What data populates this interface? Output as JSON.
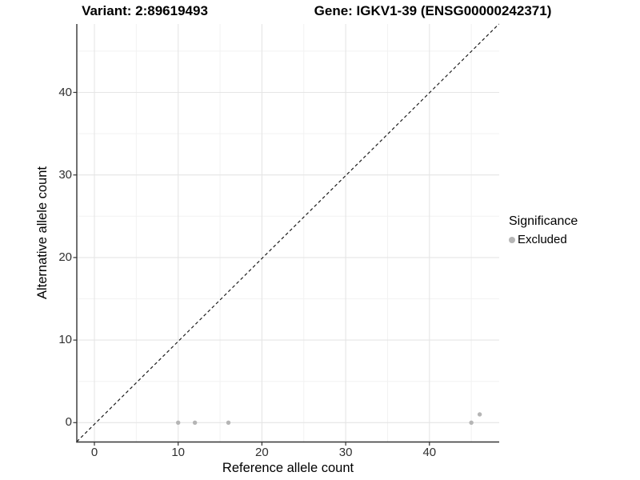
{
  "header": {
    "variant_title": "Variant: 2:89619493",
    "gene_title": "Gene: IGKV1-39 (ENSG00000242371)"
  },
  "chart_data": {
    "type": "scatter",
    "title_left": "Variant: 2:89619493",
    "title_right": "Gene: IGKV1-39 (ENSG00000242371)",
    "xlabel": "Reference allele count",
    "ylabel": "Alternative allele count",
    "xlim": [
      -2.3,
      48.3
    ],
    "ylim": [
      -2.3,
      48.3
    ],
    "x_ticks": [
      0,
      10,
      20,
      30,
      40
    ],
    "y_ticks": [
      0,
      10,
      20,
      30,
      40
    ],
    "x_minor_ticks": [
      5,
      15,
      25,
      35,
      45
    ],
    "y_minor_ticks": [
      5,
      15,
      25,
      35,
      45
    ],
    "grid": true,
    "series": [
      {
        "name": "Excluded",
        "color": "#b5b5b5",
        "points": [
          {
            "x": 10,
            "y": 0
          },
          {
            "x": 12,
            "y": 0
          },
          {
            "x": 16,
            "y": 0
          },
          {
            "x": 45,
            "y": 0
          },
          {
            "x": 46,
            "y": 1
          }
        ]
      }
    ],
    "identity_line": {
      "style": "dashed",
      "color": "#1c1c1c",
      "from": [
        -2.3,
        -2.3
      ],
      "to": [
        48.3,
        48.3
      ]
    },
    "legend": {
      "title": "Significance",
      "position": "right",
      "items": [
        {
          "label": "Excluded",
          "color": "#b5b5b5"
        }
      ]
    }
  },
  "colors": {
    "background": "#ffffff",
    "panel_background": "#ffffff",
    "grid_major": "#e5e5e5",
    "grid_minor": "#f2f2f2",
    "axis_line": "#333333",
    "tick_text": "#303030",
    "point": "#b5b5b5",
    "dashed_line": "#1c1c1c"
  }
}
